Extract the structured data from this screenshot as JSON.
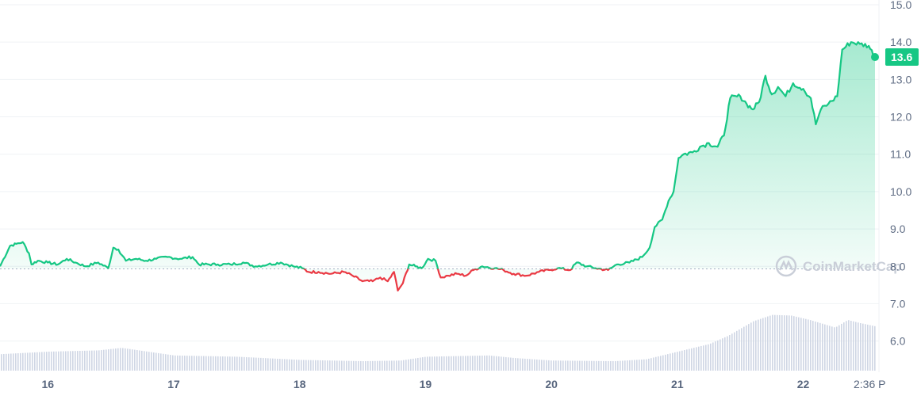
{
  "watermark": "CoinMarketCap",
  "colors": {
    "up": "#16c784",
    "down": "#ea3943",
    "grid": "#eff2f5",
    "baseline": "#a6b0c3",
    "volume": "#cfd6e4",
    "price_label_bg": "#16c784"
  },
  "current_price_label": "13.6",
  "time_label": "2:36 P",
  "chart_data": {
    "type": "area",
    "x_ticks": [
      "16",
      "17",
      "18",
      "19",
      "20",
      "21",
      "22"
    ],
    "y_ticks": [
      "15.0",
      "14.0",
      "13.0",
      "12.0",
      "11.0",
      "10.0",
      "9.0",
      "8.0",
      "7.0",
      "6.0"
    ],
    "ylim": [
      5.25,
      15.0
    ],
    "xlim": [
      15.62,
      22.6
    ],
    "baseline": 7.93,
    "grid": true,
    "price_points": [
      [
        15.62,
        8.0
      ],
      [
        15.7,
        8.55
      ],
      [
        15.75,
        8.6
      ],
      [
        15.8,
        8.65
      ],
      [
        15.85,
        8.35
      ],
      [
        15.87,
        8.05
      ],
      [
        15.92,
        8.15
      ],
      [
        16.0,
        8.1
      ],
      [
        16.08,
        8.05
      ],
      [
        16.15,
        8.2
      ],
      [
        16.22,
        8.1
      ],
      [
        16.3,
        8.0
      ],
      [
        16.4,
        8.1
      ],
      [
        16.48,
        7.95
      ],
      [
        16.52,
        8.5
      ],
      [
        16.56,
        8.45
      ],
      [
        16.62,
        8.15
      ],
      [
        16.7,
        8.2
      ],
      [
        16.78,
        8.15
      ],
      [
        16.86,
        8.2
      ],
      [
        16.95,
        8.25
      ],
      [
        17.05,
        8.2
      ],
      [
        17.15,
        8.25
      ],
      [
        17.2,
        8.05
      ],
      [
        17.35,
        8.05
      ],
      [
        17.45,
        8.05
      ],
      [
        17.55,
        8.1
      ],
      [
        17.65,
        8.0
      ],
      [
        17.75,
        8.05
      ],
      [
        17.85,
        8.1
      ],
      [
        17.95,
        8.0
      ],
      [
        18.02,
        7.95
      ],
      [
        18.07,
        7.85
      ],
      [
        18.15,
        7.85
      ],
      [
        18.25,
        7.8
      ],
      [
        18.35,
        7.85
      ],
      [
        18.42,
        7.75
      ],
      [
        18.5,
        7.6
      ],
      [
        18.58,
        7.6
      ],
      [
        18.64,
        7.7
      ],
      [
        18.7,
        7.6
      ],
      [
        18.75,
        7.85
      ],
      [
        18.78,
        7.35
      ],
      [
        18.82,
        7.55
      ],
      [
        18.87,
        8.05
      ],
      [
        18.92,
        8.0
      ],
      [
        18.97,
        7.95
      ],
      [
        19.02,
        8.2
      ],
      [
        19.08,
        8.15
      ],
      [
        19.12,
        7.7
      ],
      [
        19.18,
        7.75
      ],
      [
        19.25,
        7.8
      ],
      [
        19.32,
        7.75
      ],
      [
        19.38,
        7.9
      ],
      [
        19.45,
        8.0
      ],
      [
        19.55,
        7.95
      ],
      [
        19.62,
        7.9
      ],
      [
        19.7,
        7.8
      ],
      [
        19.8,
        7.75
      ],
      [
        19.9,
        7.85
      ],
      [
        19.98,
        7.9
      ],
      [
        20.05,
        7.95
      ],
      [
        20.15,
        7.9
      ],
      [
        20.2,
        8.1
      ],
      [
        20.28,
        8.0
      ],
      [
        20.35,
        7.95
      ],
      [
        20.45,
        7.9
      ],
      [
        20.52,
        8.05
      ],
      [
        20.62,
        8.1
      ],
      [
        20.72,
        8.25
      ],
      [
        20.78,
        8.5
      ],
      [
        20.82,
        9.05
      ],
      [
        20.88,
        9.25
      ],
      [
        20.93,
        9.75
      ],
      [
        20.97,
        10.0
      ],
      [
        21.01,
        10.9
      ],
      [
        21.05,
        11.0
      ],
      [
        21.12,
        11.05
      ],
      [
        21.18,
        11.2
      ],
      [
        21.25,
        11.3
      ],
      [
        21.32,
        11.2
      ],
      [
        21.37,
        11.5
      ],
      [
        21.42,
        12.5
      ],
      [
        21.5,
        12.55
      ],
      [
        21.55,
        12.35
      ],
      [
        21.6,
        12.2
      ],
      [
        21.65,
        12.4
      ],
      [
        21.7,
        13.1
      ],
      [
        21.75,
        12.6
      ],
      [
        21.8,
        12.8
      ],
      [
        21.86,
        12.55
      ],
      [
        21.92,
        12.9
      ],
      [
        22.0,
        12.75
      ],
      [
        22.06,
        12.5
      ],
      [
        22.1,
        11.8
      ],
      [
        22.14,
        12.2
      ],
      [
        22.2,
        12.35
      ],
      [
        22.27,
        12.55
      ],
      [
        22.31,
        13.8
      ],
      [
        22.38,
        14.0
      ],
      [
        22.45,
        13.95
      ],
      [
        22.52,
        13.9
      ],
      [
        22.57,
        13.6
      ]
    ],
    "volume_profile": [
      [
        15.62,
        0.26
      ],
      [
        16.0,
        0.3
      ],
      [
        16.4,
        0.32
      ],
      [
        16.58,
        0.36
      ],
      [
        17.0,
        0.24
      ],
      [
        17.5,
        0.22
      ],
      [
        18.0,
        0.17
      ],
      [
        18.5,
        0.15
      ],
      [
        18.8,
        0.16
      ],
      [
        19.0,
        0.22
      ],
      [
        19.5,
        0.24
      ],
      [
        19.7,
        0.2
      ],
      [
        20.0,
        0.16
      ],
      [
        20.5,
        0.15
      ],
      [
        20.75,
        0.18
      ],
      [
        21.0,
        0.3
      ],
      [
        21.25,
        0.42
      ],
      [
        21.4,
        0.55
      ],
      [
        21.6,
        0.78
      ],
      [
        21.75,
        0.88
      ],
      [
        21.9,
        0.87
      ],
      [
        22.05,
        0.8
      ],
      [
        22.25,
        0.68
      ],
      [
        22.35,
        0.8
      ],
      [
        22.45,
        0.75
      ],
      [
        22.57,
        0.7
      ]
    ]
  }
}
